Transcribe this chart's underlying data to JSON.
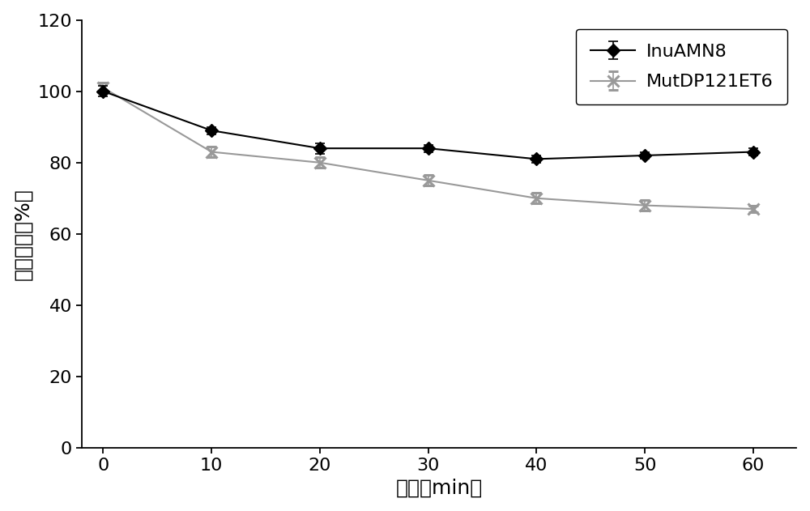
{
  "x": [
    0,
    10,
    20,
    30,
    40,
    50,
    60
  ],
  "inu_y": [
    100,
    89,
    84,
    84,
    81,
    82,
    83
  ],
  "inu_yerr": [
    1.5,
    1.0,
    1.5,
    1.0,
    1.0,
    1.0,
    1.0
  ],
  "mut_y": [
    101,
    83,
    80,
    75,
    70,
    68,
    67
  ],
  "mut_yerr": [
    1.5,
    1.5,
    1.5,
    1.5,
    1.5,
    1.5,
    1.0
  ],
  "inu_color": "#000000",
  "mut_color": "#999999",
  "xlabel": "时间（min）",
  "ylabel": "相对活性（%）",
  "inu_label": "InuAMN8",
  "mut_label": "MutDP121ET6",
  "xlim": [
    -2,
    64
  ],
  "ylim": [
    0,
    120
  ],
  "yticks": [
    0,
    20,
    40,
    60,
    80,
    100,
    120
  ],
  "xticks": [
    0,
    10,
    20,
    30,
    40,
    50,
    60
  ],
  "axis_label_fontsize": 18,
  "tick_fontsize": 16,
  "legend_fontsize": 16,
  "background_color": "#ffffff"
}
